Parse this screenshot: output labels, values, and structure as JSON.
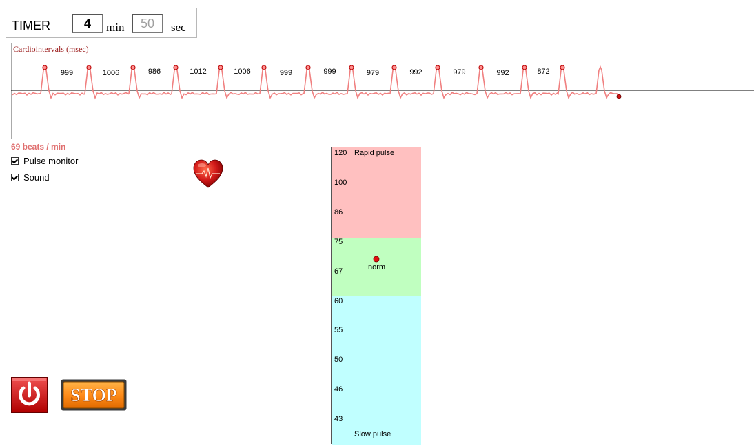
{
  "timer": {
    "title": "TIMER",
    "minutes": "4",
    "min_unit": "min",
    "seconds": "50",
    "sec_unit": "sec"
  },
  "cardio": {
    "title": "Cardiointervals  (msec)",
    "intervals": [
      "999",
      "1006",
      "986",
      "1012",
      "1006",
      "999",
      "999",
      "979",
      "992",
      "979",
      "992",
      "872"
    ]
  },
  "pulse": {
    "bpm_text": "69  beats / min",
    "pulse_monitor_label": "Pulse monitor",
    "pulse_monitor_checked": true,
    "sound_label": "Sound",
    "sound_checked": true
  },
  "scale": {
    "ticks": [
      "120",
      "100",
      "86",
      "75",
      "67",
      "60",
      "55",
      "50",
      "46",
      "43"
    ],
    "rapid_label": "Rapid pulse",
    "norm_label": "norm",
    "slow_label": "Slow pulse",
    "current_bpm": 69,
    "colors": {
      "rapid": "#ffc0c0",
      "norm": "#c0ffc0",
      "slow": "#c0ffff"
    }
  },
  "controls": {
    "power_icon": "power-icon",
    "stop_label": "STOP"
  }
}
